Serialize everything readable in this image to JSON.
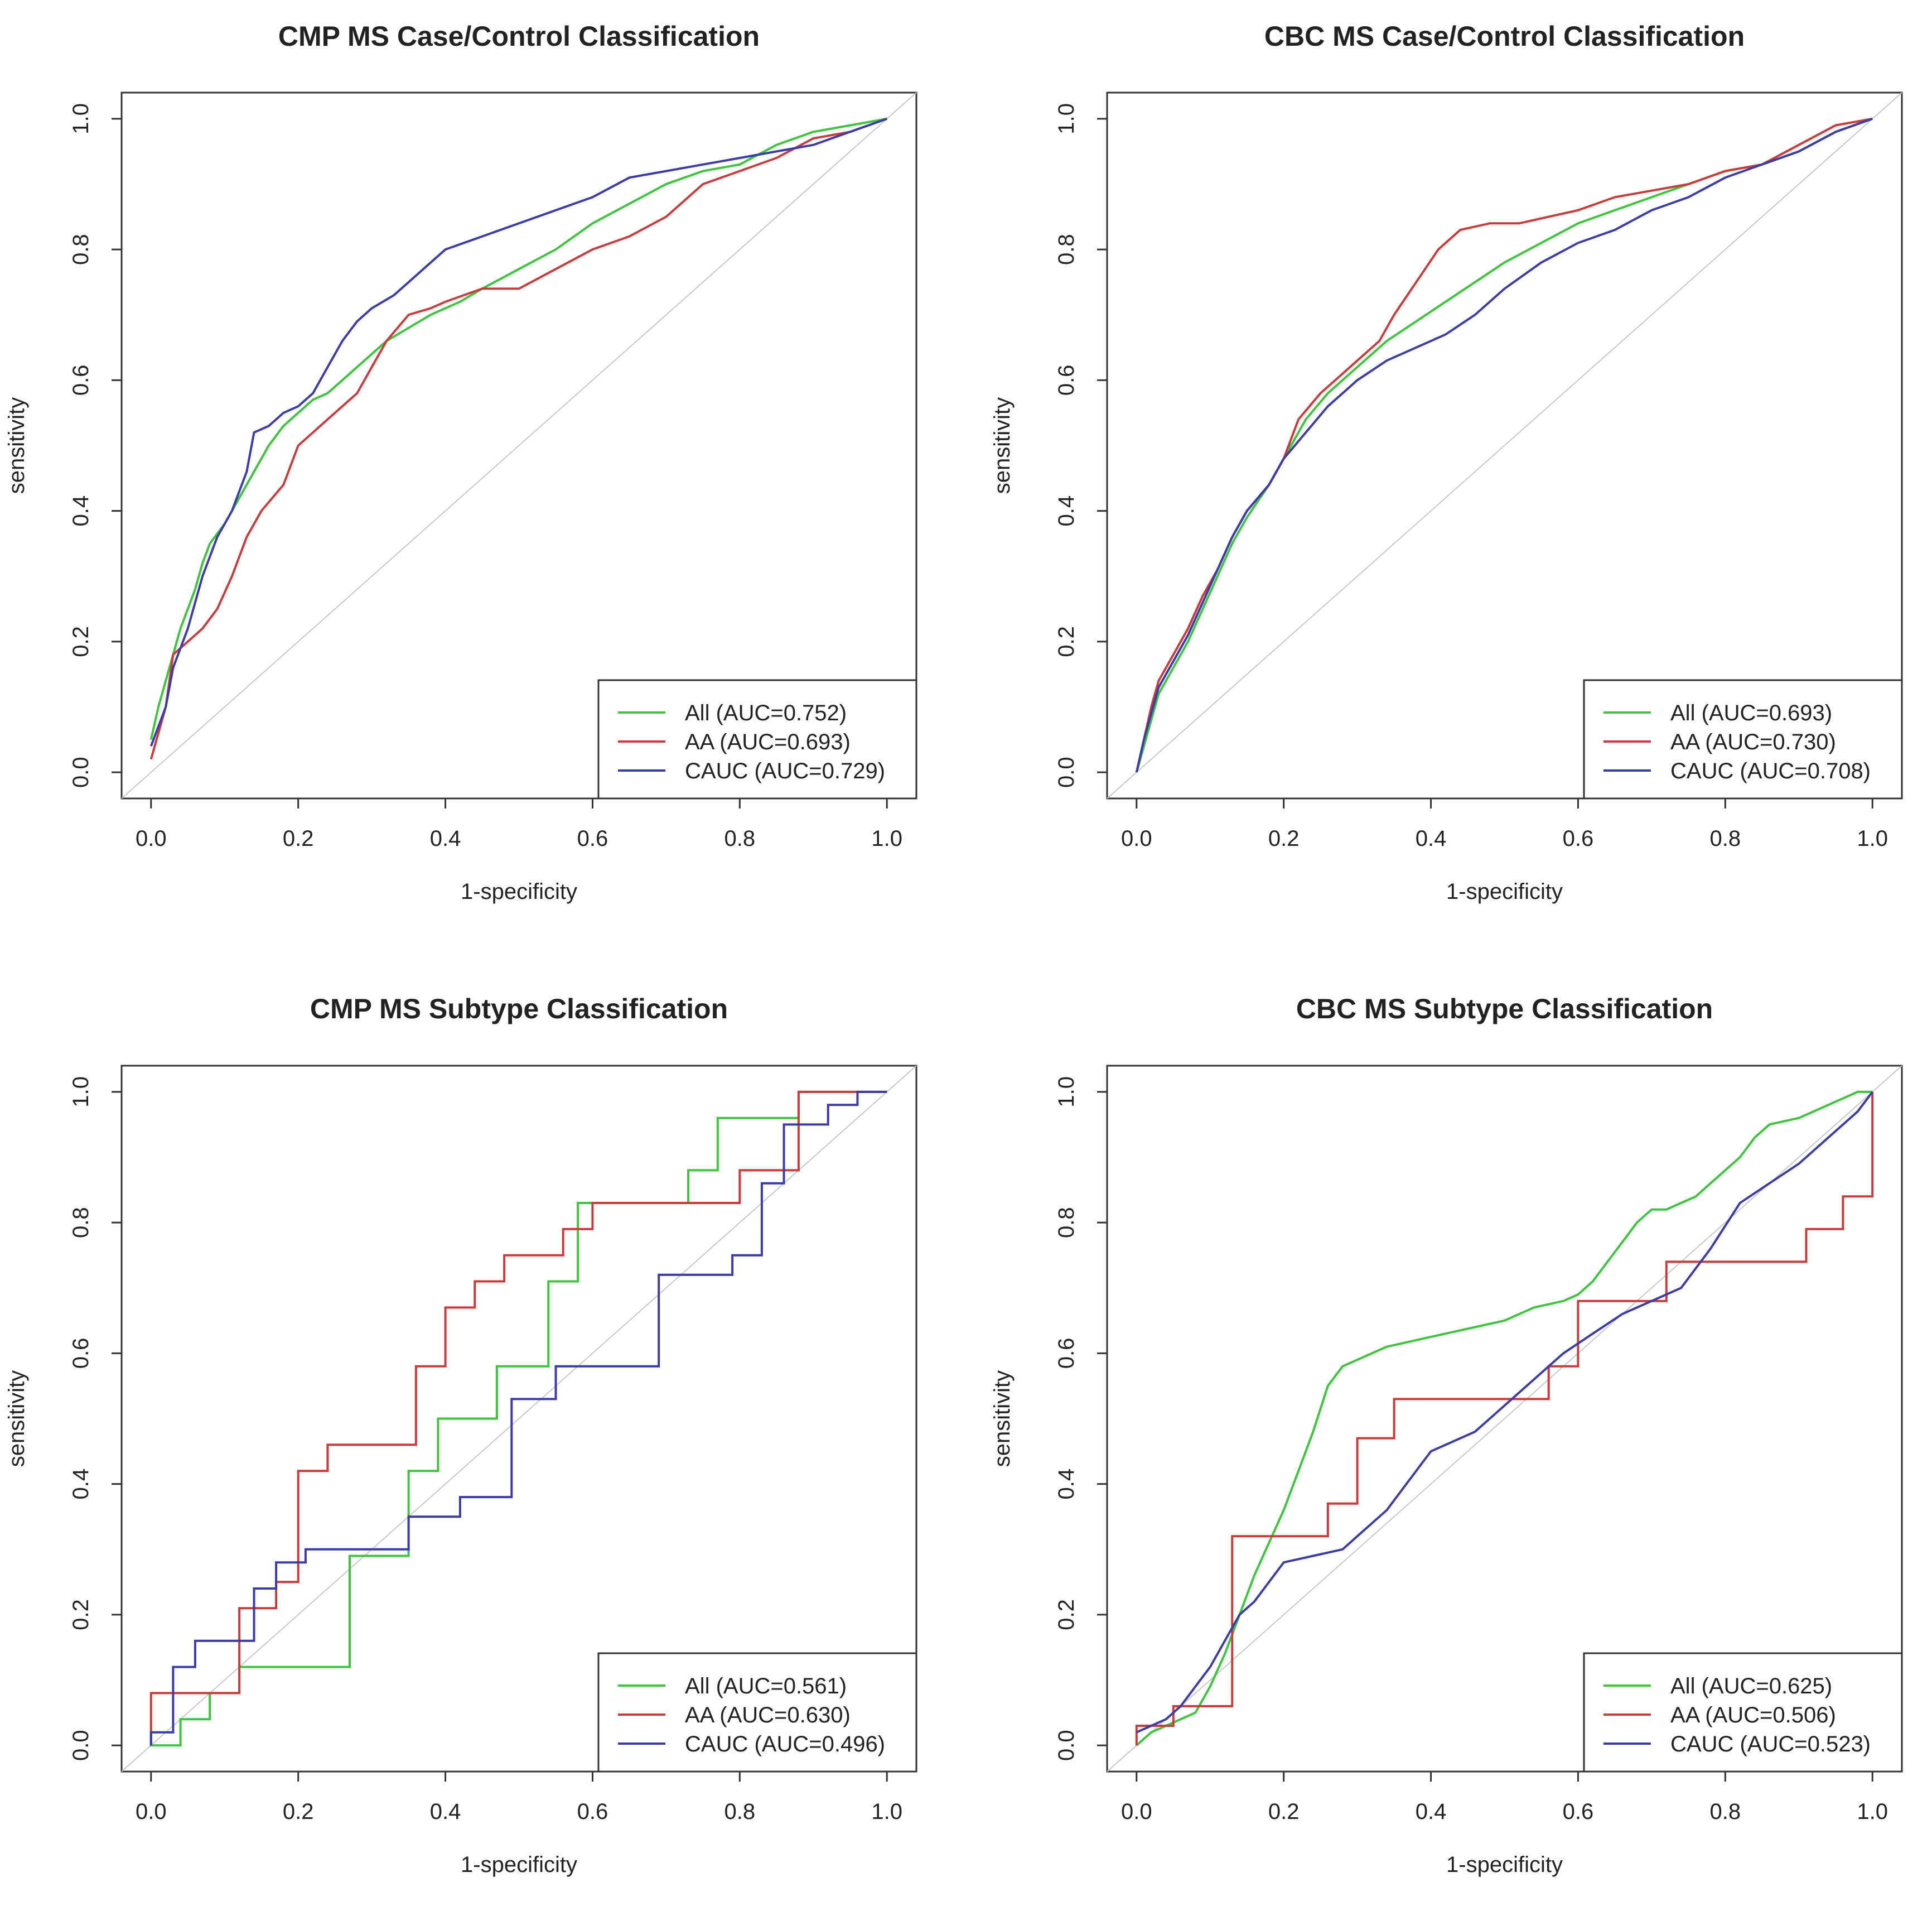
{
  "chart_data": [
    {
      "type": "line",
      "title": "CMP MS Case/Control Classification",
      "xlabel": "1-specificity",
      "ylabel": "sensitivity",
      "xlim": [
        0,
        1
      ],
      "ylim": [
        0,
        1
      ],
      "xticks": [
        "0.0",
        "0.2",
        "0.4",
        "0.6",
        "0.8",
        "1.0"
      ],
      "yticks": [
        "0.0",
        "0.2",
        "0.4",
        "0.6",
        "0.8",
        "1.0"
      ],
      "legend_position": "bottom-right",
      "reference_line": "diagonal",
      "series": [
        {
          "name": "All",
          "legend": "All (AUC=0.752)",
          "color": "#3ec43e",
          "x": [
            0,
            0.01,
            0.02,
            0.03,
            0.04,
            0.05,
            0.06,
            0.07,
            0.08,
            0.1,
            0.12,
            0.14,
            0.16,
            0.18,
            0.2,
            0.22,
            0.24,
            0.26,
            0.28,
            0.3,
            0.32,
            0.35,
            0.38,
            0.42,
            0.45,
            0.5,
            0.55,
            0.6,
            0.65,
            0.7,
            0.75,
            0.8,
            0.85,
            0.9,
            0.95,
            1.0
          ],
          "y": [
            0.05,
            0.1,
            0.14,
            0.18,
            0.22,
            0.25,
            0.28,
            0.32,
            0.35,
            0.38,
            0.42,
            0.46,
            0.5,
            0.53,
            0.55,
            0.57,
            0.58,
            0.6,
            0.62,
            0.64,
            0.66,
            0.68,
            0.7,
            0.72,
            0.74,
            0.77,
            0.8,
            0.84,
            0.87,
            0.9,
            0.92,
            0.93,
            0.96,
            0.98,
            0.99,
            1.0
          ]
        },
        {
          "name": "AA",
          "legend": "AA (AUC=0.693)",
          "color": "#c83c3c",
          "x": [
            0,
            0.02,
            0.03,
            0.05,
            0.07,
            0.09,
            0.11,
            0.13,
            0.15,
            0.18,
            0.2,
            0.22,
            0.25,
            0.28,
            0.3,
            0.32,
            0.35,
            0.38,
            0.4,
            0.45,
            0.5,
            0.55,
            0.6,
            0.65,
            0.7,
            0.75,
            0.8,
            0.85,
            0.9,
            0.95,
            1.0
          ],
          "y": [
            0.02,
            0.1,
            0.18,
            0.2,
            0.22,
            0.25,
            0.3,
            0.36,
            0.4,
            0.44,
            0.5,
            0.52,
            0.55,
            0.58,
            0.62,
            0.66,
            0.7,
            0.71,
            0.72,
            0.74,
            0.74,
            0.77,
            0.8,
            0.82,
            0.85,
            0.9,
            0.92,
            0.94,
            0.97,
            0.98,
            1.0
          ]
        },
        {
          "name": "CAUC",
          "legend": "CAUC (AUC=0.729)",
          "color": "#3c3ca8",
          "x": [
            0,
            0.02,
            0.03,
            0.05,
            0.07,
            0.09,
            0.11,
            0.13,
            0.14,
            0.16,
            0.18,
            0.2,
            0.22,
            0.24,
            0.26,
            0.28,
            0.3,
            0.33,
            0.36,
            0.4,
            0.45,
            0.5,
            0.55,
            0.6,
            0.65,
            0.7,
            0.75,
            0.8,
            0.85,
            0.9,
            0.95,
            1.0
          ],
          "y": [
            0.04,
            0.1,
            0.16,
            0.22,
            0.3,
            0.36,
            0.4,
            0.46,
            0.52,
            0.53,
            0.55,
            0.56,
            0.58,
            0.62,
            0.66,
            0.69,
            0.71,
            0.73,
            0.76,
            0.8,
            0.82,
            0.84,
            0.86,
            0.88,
            0.91,
            0.92,
            0.93,
            0.94,
            0.95,
            0.96,
            0.98,
            1.0
          ]
        }
      ]
    },
    {
      "type": "line",
      "title": "CBC MS Case/Control Classification",
      "xlabel": "1-specificity",
      "ylabel": "sensitivity",
      "xlim": [
        0,
        1
      ],
      "ylim": [
        0,
        1
      ],
      "xticks": [
        "0.0",
        "0.2",
        "0.4",
        "0.6",
        "0.8",
        "1.0"
      ],
      "yticks": [
        "0.0",
        "0.2",
        "0.4",
        "0.6",
        "0.8",
        "1.0"
      ],
      "legend_position": "bottom-right",
      "reference_line": "diagonal",
      "series": [
        {
          "name": "All",
          "legend": "All (AUC=0.693)",
          "color": "#3ec43e",
          "x": [
            0,
            0.01,
            0.02,
            0.03,
            0.05,
            0.07,
            0.09,
            0.11,
            0.13,
            0.15,
            0.18,
            0.2,
            0.23,
            0.26,
            0.3,
            0.34,
            0.38,
            0.42,
            0.46,
            0.5,
            0.55,
            0.6,
            0.65,
            0.7,
            0.75,
            0.8,
            0.85,
            0.9,
            0.95,
            1.0
          ],
          "y": [
            0,
            0.04,
            0.08,
            0.12,
            0.16,
            0.2,
            0.25,
            0.3,
            0.35,
            0.39,
            0.44,
            0.48,
            0.54,
            0.58,
            0.62,
            0.66,
            0.69,
            0.72,
            0.75,
            0.78,
            0.81,
            0.84,
            0.86,
            0.88,
            0.9,
            0.92,
            0.93,
            0.95,
            0.98,
            1.0
          ]
        },
        {
          "name": "AA",
          "legend": "AA (AUC=0.730)",
          "color": "#c83c3c",
          "x": [
            0,
            0.01,
            0.02,
            0.03,
            0.05,
            0.07,
            0.09,
            0.11,
            0.13,
            0.15,
            0.18,
            0.2,
            0.22,
            0.25,
            0.28,
            0.3,
            0.33,
            0.35,
            0.38,
            0.41,
            0.44,
            0.48,
            0.52,
            0.56,
            0.6,
            0.65,
            0.7,
            0.75,
            0.8,
            0.85,
            0.9,
            0.95,
            1.0
          ],
          "y": [
            0,
            0.05,
            0.1,
            0.14,
            0.18,
            0.22,
            0.27,
            0.31,
            0.36,
            0.4,
            0.44,
            0.48,
            0.54,
            0.58,
            0.61,
            0.63,
            0.66,
            0.7,
            0.75,
            0.8,
            0.83,
            0.84,
            0.84,
            0.85,
            0.86,
            0.88,
            0.89,
            0.9,
            0.92,
            0.93,
            0.96,
            0.99,
            1.0
          ]
        },
        {
          "name": "CAUC",
          "legend": "CAUC (AUC=0.708)",
          "color": "#3c3ca8",
          "x": [
            0,
            0.01,
            0.02,
            0.03,
            0.05,
            0.07,
            0.09,
            0.11,
            0.13,
            0.15,
            0.18,
            0.2,
            0.23,
            0.26,
            0.3,
            0.34,
            0.38,
            0.42,
            0.46,
            0.5,
            0.55,
            0.6,
            0.65,
            0.7,
            0.75,
            0.8,
            0.85,
            0.9,
            0.95,
            1.0
          ],
          "y": [
            0,
            0.05,
            0.09,
            0.13,
            0.17,
            0.21,
            0.26,
            0.31,
            0.36,
            0.4,
            0.44,
            0.48,
            0.52,
            0.56,
            0.6,
            0.63,
            0.65,
            0.67,
            0.7,
            0.74,
            0.78,
            0.81,
            0.83,
            0.86,
            0.88,
            0.91,
            0.93,
            0.95,
            0.98,
            1.0
          ]
        }
      ]
    },
    {
      "type": "line",
      "title": "CMP MS Subtype Classification",
      "xlabel": "1-specificity",
      "ylabel": "sensitivity",
      "xlim": [
        0,
        1
      ],
      "ylim": [
        0,
        1
      ],
      "xticks": [
        "0.0",
        "0.2",
        "0.4",
        "0.6",
        "0.8",
        "1.0"
      ],
      "yticks": [
        "0.0",
        "0.2",
        "0.4",
        "0.6",
        "0.8",
        "1.0"
      ],
      "legend_position": "bottom-right",
      "reference_line": "diagonal",
      "series": [
        {
          "name": "All",
          "legend": "All (AUC=0.561)",
          "color": "#3ec43e",
          "x": [
            0,
            0,
            0.04,
            0.04,
            0.08,
            0.08,
            0.12,
            0.12,
            0.27,
            0.27,
            0.35,
            0.35,
            0.39,
            0.39,
            0.47,
            0.47,
            0.54,
            0.54,
            0.58,
            0.58,
            0.73,
            0.73,
            0.77,
            0.77,
            0.88,
            0.88,
            1.0
          ],
          "y": [
            0.02,
            0,
            0,
            0.04,
            0.04,
            0.08,
            0.08,
            0.12,
            0.12,
            0.29,
            0.29,
            0.42,
            0.42,
            0.5,
            0.5,
            0.58,
            0.58,
            0.71,
            0.71,
            0.83,
            0.83,
            0.88,
            0.88,
            0.96,
            0.96,
            1.0,
            1.0
          ]
        },
        {
          "name": "AA",
          "legend": "AA (AUC=0.630)",
          "color": "#c83c3c",
          "x": [
            0,
            0,
            0.12,
            0.12,
            0.17,
            0.17,
            0.2,
            0.2,
            0.24,
            0.24,
            0.36,
            0.36,
            0.4,
            0.4,
            0.44,
            0.44,
            0.48,
            0.48,
            0.56,
            0.56,
            0.6,
            0.6,
            0.8,
            0.8,
            0.88,
            0.88,
            1.0
          ],
          "y": [
            0,
            0.08,
            0.08,
            0.21,
            0.21,
            0.25,
            0.25,
            0.42,
            0.42,
            0.46,
            0.46,
            0.58,
            0.58,
            0.67,
            0.67,
            0.71,
            0.71,
            0.75,
            0.75,
            0.79,
            0.79,
            0.83,
            0.83,
            0.88,
            0.88,
            1.0,
            1.0
          ]
        },
        {
          "name": "CAUC",
          "legend": "CAUC (AUC=0.496)",
          "color": "#3c3ca8",
          "x": [
            0,
            0,
            0.03,
            0.03,
            0.06,
            0.06,
            0.14,
            0.14,
            0.17,
            0.17,
            0.21,
            0.21,
            0.35,
            0.35,
            0.42,
            0.42,
            0.49,
            0.49,
            0.55,
            0.55,
            0.69,
            0.69,
            0.79,
            0.79,
            0.83,
            0.83,
            0.86,
            0.86,
            0.92,
            0.92,
            0.96,
            0.96,
            1.0
          ],
          "y": [
            0,
            0.02,
            0.02,
            0.12,
            0.12,
            0.16,
            0.16,
            0.24,
            0.24,
            0.28,
            0.28,
            0.3,
            0.3,
            0.35,
            0.35,
            0.38,
            0.38,
            0.53,
            0.53,
            0.58,
            0.58,
            0.72,
            0.72,
            0.75,
            0.75,
            0.86,
            0.86,
            0.95,
            0.95,
            0.98,
            0.98,
            1.0,
            1.0
          ]
        }
      ]
    },
    {
      "type": "line",
      "title": "CBC MS Subtype Classification",
      "xlabel": "1-specificity",
      "ylabel": "sensitivity",
      "xlim": [
        0,
        1
      ],
      "ylim": [
        0,
        1
      ],
      "xticks": [
        "0.0",
        "0.2",
        "0.4",
        "0.6",
        "0.8",
        "1.0"
      ],
      "yticks": [
        "0.0",
        "0.2",
        "0.4",
        "0.6",
        "0.8",
        "1.0"
      ],
      "legend_position": "bottom-right",
      "reference_line": "diagonal",
      "series": [
        {
          "name": "All",
          "legend": "All (AUC=0.625)",
          "color": "#3ec43e",
          "x": [
            0,
            0.02,
            0.04,
            0.06,
            0.08,
            0.1,
            0.12,
            0.14,
            0.16,
            0.18,
            0.2,
            0.22,
            0.24,
            0.26,
            0.28,
            0.3,
            0.34,
            0.38,
            0.42,
            0.46,
            0.5,
            0.54,
            0.58,
            0.6,
            0.62,
            0.64,
            0.66,
            0.68,
            0.7,
            0.72,
            0.76,
            0.78,
            0.8,
            0.82,
            0.84,
            0.86,
            0.9,
            0.94,
            0.98,
            1.0
          ],
          "y": [
            0,
            0.02,
            0.03,
            0.04,
            0.05,
            0.09,
            0.14,
            0.2,
            0.26,
            0.31,
            0.36,
            0.42,
            0.48,
            0.55,
            0.58,
            0.59,
            0.61,
            0.62,
            0.63,
            0.64,
            0.65,
            0.67,
            0.68,
            0.69,
            0.71,
            0.74,
            0.77,
            0.8,
            0.82,
            0.82,
            0.84,
            0.86,
            0.88,
            0.9,
            0.93,
            0.95,
            0.96,
            0.98,
            1.0,
            1.0
          ]
        },
        {
          "name": "AA",
          "legend": "AA (AUC=0.506)",
          "color": "#c83c3c",
          "x": [
            0,
            0,
            0.05,
            0.05,
            0.13,
            0.13,
            0.26,
            0.26,
            0.3,
            0.3,
            0.35,
            0.35,
            0.56,
            0.56,
            0.6,
            0.6,
            0.72,
            0.72,
            0.91,
            0.91,
            0.96,
            0.96,
            1.0,
            1.0
          ],
          "y": [
            0,
            0.03,
            0.03,
            0.06,
            0.06,
            0.32,
            0.32,
            0.37,
            0.37,
            0.47,
            0.47,
            0.53,
            0.53,
            0.58,
            0.58,
            0.68,
            0.68,
            0.74,
            0.74,
            0.79,
            0.79,
            0.84,
            0.84,
            1.0
          ]
        },
        {
          "name": "CAUC",
          "legend": "CAUC (AUC=0.523)",
          "color": "#3c3ca8",
          "x": [
            0,
            0.02,
            0.04,
            0.06,
            0.08,
            0.1,
            0.12,
            0.14,
            0.16,
            0.18,
            0.2,
            0.24,
            0.28,
            0.3,
            0.32,
            0.34,
            0.36,
            0.38,
            0.4,
            0.42,
            0.46,
            0.5,
            0.54,
            0.58,
            0.62,
            0.66,
            0.7,
            0.74,
            0.78,
            0.82,
            0.86,
            0.9,
            0.94,
            0.98,
            1.0
          ],
          "y": [
            0.02,
            0.03,
            0.04,
            0.06,
            0.09,
            0.12,
            0.16,
            0.2,
            0.22,
            0.25,
            0.28,
            0.29,
            0.3,
            0.32,
            0.34,
            0.36,
            0.39,
            0.42,
            0.45,
            0.46,
            0.48,
            0.52,
            0.56,
            0.6,
            0.63,
            0.66,
            0.68,
            0.7,
            0.76,
            0.83,
            0.86,
            0.89,
            0.93,
            0.97,
            1.0
          ]
        }
      ]
    }
  ]
}
